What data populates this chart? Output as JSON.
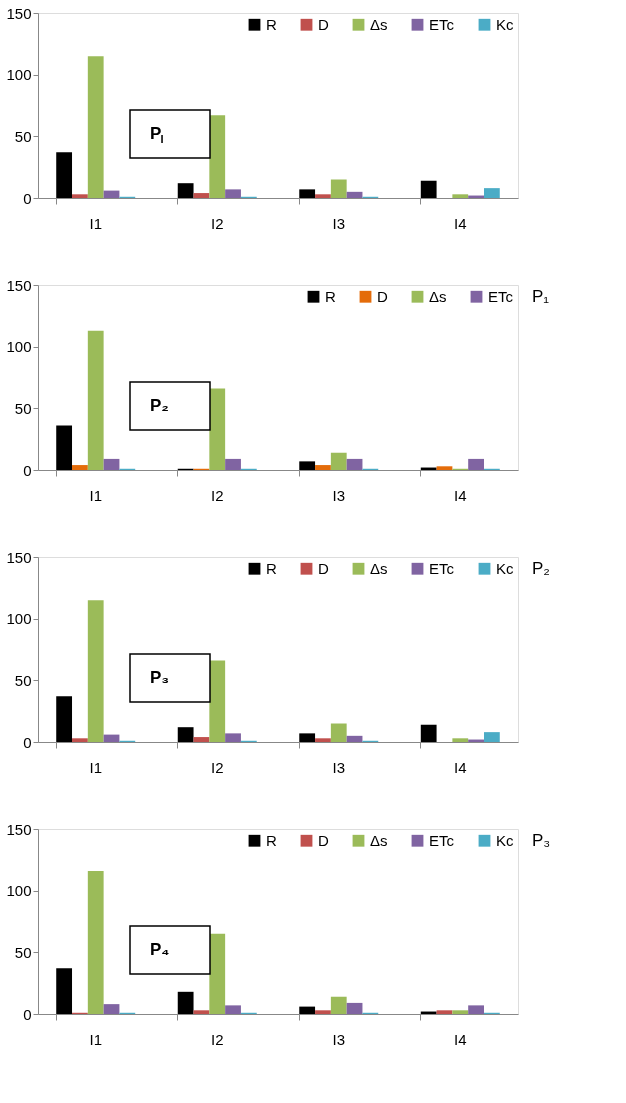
{
  "chart_data": [
    {
      "type": "bar",
      "categories": [
        "I1",
        "I2",
        "I3",
        "I4"
      ],
      "ylim": [
        0,
        150
      ],
      "yticks": [
        0,
        50,
        100,
        150
      ],
      "grid": false,
      "legend": "top right",
      "annotations": [
        "P$_{I}$"
      ],
      "series": [
        {
          "name": "R",
          "color": "#000000",
          "values": [
            37,
            12,
            7,
            14
          ]
        },
        {
          "name": "D",
          "color": "#c0504d",
          "values": [
            3,
            4,
            3,
            0
          ]
        },
        {
          "name": "Δs",
          "color": "#9bbb59",
          "values": [
            115,
            67,
            15,
            3
          ]
        },
        {
          "name": "ETc",
          "color": "#8064a2",
          "values": [
            6,
            7,
            5,
            2
          ]
        },
        {
          "name": "Kc",
          "color": "#4bacc6",
          "values": [
            1,
            1,
            1,
            8
          ]
        }
      ]
    },
    {
      "type": "bar",
      "categories": [
        "I1",
        "I2",
        "I3",
        "I4"
      ],
      "ylim": [
        0,
        150
      ],
      "yticks": [
        0,
        50,
        100,
        150
      ],
      "grid": false,
      "legend": "top right",
      "annotations": [
        "P₂",
        "P₁"
      ],
      "series": [
        {
          "name": "R",
          "color": "#000000",
          "values": [
            36,
            1,
            7,
            2
          ]
        },
        {
          "name": "D",
          "color": "#e46c0a",
          "values": [
            4,
            1,
            4,
            3
          ]
        },
        {
          "name": "Δs",
          "color": "#9bbb59",
          "values": [
            113,
            66,
            14,
            1
          ]
        },
        {
          "name": "ETc",
          "color": "#8064a2",
          "values": [
            9,
            9,
            9,
            9
          ]
        },
        {
          "color": "#4bacc6",
          "values": [
            1,
            1,
            1,
            1
          ]
        }
      ]
    },
    {
      "type": "bar",
      "categories": [
        "I1",
        "I2",
        "I3",
        "I4"
      ],
      "ylim": [
        0,
        150
      ],
      "yticks": [
        0,
        50,
        100,
        150
      ],
      "grid": false,
      "legend": "top right",
      "annotations": [
        "P₃",
        "P₂"
      ],
      "series": [
        {
          "name": "R",
          "color": "#000000",
          "values": [
            37,
            12,
            7,
            14
          ]
        },
        {
          "name": "D",
          "color": "#c0504d",
          "values": [
            3,
            4,
            3,
            0
          ]
        },
        {
          "name": "Δs",
          "color": "#9bbb59",
          "values": [
            115,
            66,
            15,
            3
          ]
        },
        {
          "name": "ETc",
          "color": "#8064a2",
          "values": [
            6,
            7,
            5,
            2
          ]
        },
        {
          "name": "Kc",
          "color": "#4bacc6",
          "values": [
            1,
            1,
            1,
            8
          ]
        }
      ]
    },
    {
      "type": "bar",
      "categories": [
        "I1",
        "I2",
        "I3",
        "I4"
      ],
      "ylim": [
        0,
        150
      ],
      "yticks": [
        0,
        50,
        100,
        150
      ],
      "grid": false,
      "legend": "top right",
      "annotations": [
        "P₄",
        "P₃"
      ],
      "series": [
        {
          "name": "R",
          "color": "#000000",
          "values": [
            37,
            18,
            6,
            2
          ]
        },
        {
          "name": "D",
          "color": "#c0504d",
          "values": [
            1,
            3,
            3,
            3
          ]
        },
        {
          "name": "Δs",
          "color": "#9bbb59",
          "values": [
            116,
            65,
            14,
            3
          ]
        },
        {
          "name": "ETc",
          "color": "#8064a2",
          "values": [
            8,
            7,
            9,
            7
          ]
        },
        {
          "name": "Kc",
          "color": "#4bacc6",
          "values": [
            1,
            1,
            1,
            1
          ]
        }
      ]
    }
  ]
}
